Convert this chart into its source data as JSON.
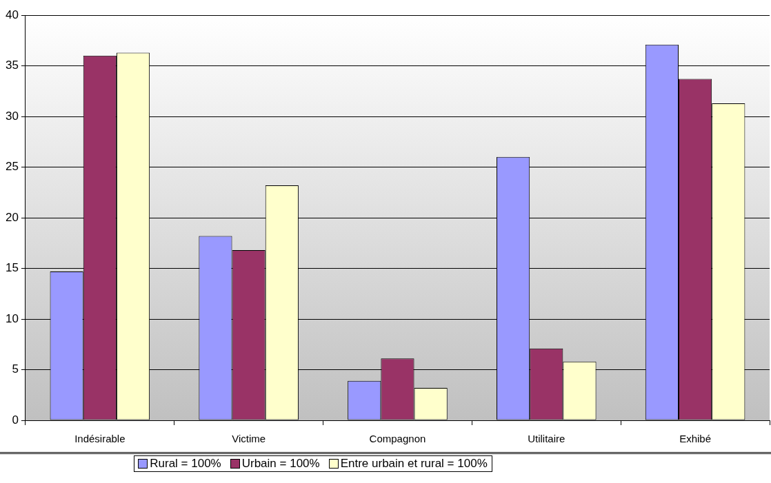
{
  "chart_data": {
    "type": "bar",
    "categories": [
      "Indésirable",
      "Victime",
      "Compagnon",
      "Utilitaire",
      "Exhibé"
    ],
    "series": [
      {
        "name": "Rural = 100%",
        "color": "#9999ff",
        "values": [
          14.7,
          18.2,
          3.9,
          26.0,
          37.1
        ]
      },
      {
        "name": "Urbain = 100%",
        "color": "#993366",
        "values": [
          36.0,
          16.8,
          6.1,
          7.1,
          33.7
        ]
      },
      {
        "name": "Entre urbain et rural = 100%",
        "color": "#ffffcc",
        "values": [
          36.3,
          23.2,
          3.2,
          5.8,
          31.3
        ]
      }
    ],
    "ylim": [
      0,
      40
    ],
    "yticks": [
      0,
      5,
      10,
      15,
      20,
      25,
      30,
      35,
      40
    ],
    "grid": "y",
    "legend": "bottom"
  }
}
